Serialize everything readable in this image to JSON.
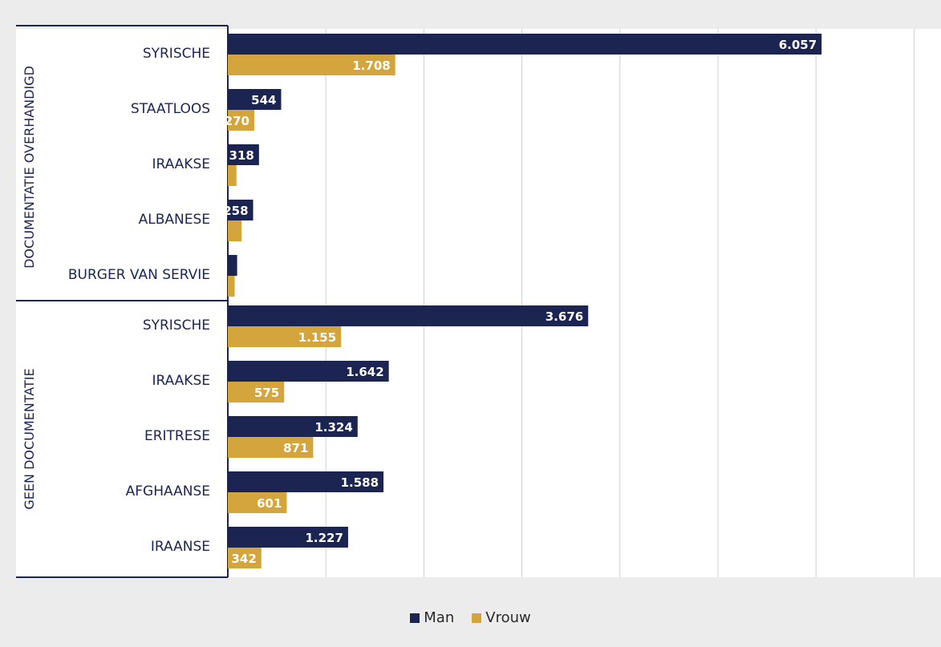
{
  "chart_data": {
    "type": "bar",
    "orientation": "horizontal",
    "groups": [
      {
        "label": "DOCUMENTATIE OVERHANDIGD",
        "categories": [
          "SYRISCHE",
          "STAATLOOS",
          "IRAAKSE",
          "ALBANESE",
          "BURGER VAN SERVIE"
        ],
        "man": [
          6057,
          544,
          318,
          258,
          95
        ],
        "vrouw": [
          1708,
          270,
          88,
          140,
          70
        ],
        "man_labels": [
          "6.057",
          "544",
          "318",
          "258",
          ""
        ],
        "vrouw_labels": [
          "1.708",
          "270",
          "",
          "",
          ""
        ]
      },
      {
        "label": "GEEN DOCUMENTATIE",
        "categories": [
          "SYRISCHE",
          "IRAAKSE",
          "ERITRESE",
          "AFGHAANSE",
          "IRAANSE"
        ],
        "man": [
          3676,
          1642,
          1324,
          1588,
          1227
        ],
        "vrouw": [
          1155,
          575,
          871,
          601,
          342
        ],
        "man_labels": [
          "3.676",
          "1.642",
          "1.324",
          "1.588",
          "1.227"
        ],
        "vrouw_labels": [
          "1.155",
          "575",
          "871",
          "601",
          "342"
        ]
      }
    ],
    "series": [
      {
        "name": "Man",
        "color": "#1c2552"
      },
      {
        "name": "Vrouw",
        "color": "#d4a53c"
      }
    ],
    "xlim": [
      0,
      7000
    ],
    "grid": true,
    "legend_position": "bottom"
  }
}
